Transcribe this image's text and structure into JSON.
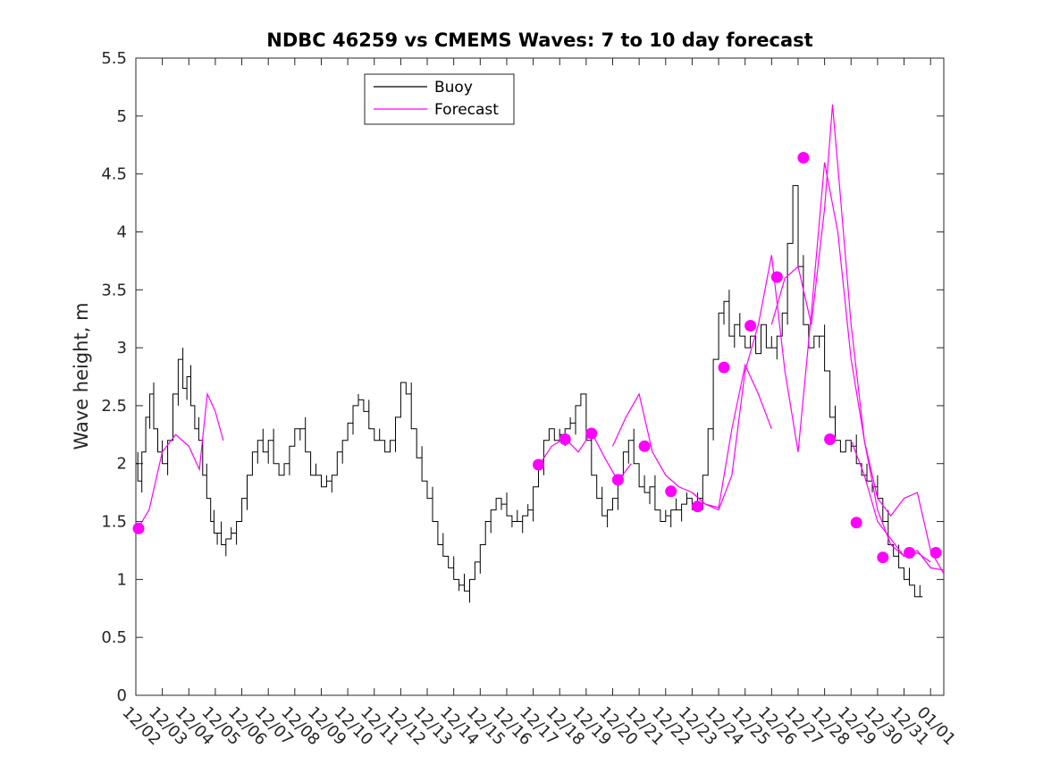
{
  "chart_data": {
    "type": "line",
    "title": "NDBC 46259 vs CMEMS Waves: 7 to 10 day forecast",
    "xlabel": "",
    "ylabel": "Wave height, m",
    "ylim": [
      0,
      5.5
    ],
    "yticks": [
      0,
      0.5,
      1,
      1.5,
      2,
      2.5,
      3,
      3.5,
      4,
      4.5,
      5,
      5.5
    ],
    "ytick_labels": [
      "0",
      "0.5",
      "1",
      "1.5",
      "2",
      "2.5",
      "3",
      "3.5",
      "4",
      "4.5",
      "5",
      "5.5"
    ],
    "xlim_days": [
      0,
      30.5
    ],
    "xtick_labels": [
      "12/02",
      "12/03",
      "12/04",
      "12/05",
      "12/06",
      "12/07",
      "12/08",
      "12/09",
      "12/10",
      "12/11",
      "12/12",
      "12/13",
      "12/14",
      "12/15",
      "12/16",
      "12/17",
      "12/18",
      "12/19",
      "12/20",
      "12/21",
      "12/22",
      "12/23",
      "12/24",
      "12/25",
      "12/26",
      "12/27",
      "12/28",
      "12/29",
      "12/30",
      "12/31",
      "01/01"
    ],
    "x_unit": "days since 12/02",
    "legend_position": "top-left",
    "series": [
      {
        "name": "Buoy",
        "color": "#000000",
        "x": [
          0,
          0.15,
          0.3,
          0.45,
          0.6,
          0.75,
          0.9,
          1.1,
          1.3,
          1.5,
          1.7,
          1.85,
          2.0,
          2.15,
          2.3,
          2.45,
          2.6,
          2.75,
          2.9,
          3.0,
          3.15,
          3.3,
          3.5,
          3.7,
          3.9,
          4.1,
          4.3,
          4.5,
          4.7,
          4.9,
          5.1,
          5.3,
          5.5,
          5.7,
          5.9,
          6.1,
          6.3,
          6.5,
          6.7,
          6.9,
          7.1,
          7.3,
          7.5,
          7.7,
          7.9,
          8.1,
          8.3,
          8.5,
          8.7,
          8.9,
          9.1,
          9.3,
          9.5,
          9.7,
          9.9,
          10.1,
          10.3,
          10.5,
          10.7,
          10.9,
          11.1,
          11.3,
          11.5,
          11.7,
          11.9,
          12.1,
          12.3,
          12.5,
          12.7,
          12.9,
          13.1,
          13.3,
          13.5,
          13.7,
          13.9,
          14.1,
          14.3,
          14.5,
          14.7,
          14.9,
          15.1,
          15.3,
          15.5,
          15.7,
          15.9,
          16.1,
          16.3,
          16.5,
          16.7,
          16.9,
          17.1,
          17.3,
          17.5,
          17.7,
          17.9,
          18.1,
          18.3,
          18.5,
          18.7,
          18.9,
          19.1,
          19.3,
          19.5,
          19.7,
          19.9,
          20.1,
          20.3,
          20.5,
          20.7,
          20.9,
          21.1,
          21.3,
          21.5,
          21.7,
          21.9,
          22.1,
          22.3,
          22.5,
          22.7,
          22.9,
          23.1,
          23.3,
          23.5,
          23.7,
          23.9,
          24.1,
          24.3,
          24.5,
          24.7,
          24.9,
          25.1,
          25.3,
          25.5,
          25.7,
          25.9,
          26.1,
          26.3,
          26.5,
          26.7,
          26.9,
          27.1,
          27.3,
          27.5,
          27.7,
          27.9,
          28.1,
          28.3,
          28.5,
          28.7,
          28.9,
          29.1,
          29.3,
          29.5,
          29.7
        ],
        "values": [
          2.0,
          1.85,
          2.1,
          2.4,
          2.6,
          2.3,
          2.1,
          2.0,
          2.2,
          2.6,
          2.9,
          2.65,
          2.75,
          2.5,
          2.3,
          2.2,
          1.9,
          1.7,
          1.5,
          1.4,
          1.4,
          1.3,
          1.35,
          1.4,
          1.5,
          1.7,
          1.9,
          2.1,
          2.2,
          2.1,
          2.2,
          2.0,
          1.9,
          2.0,
          2.15,
          2.3,
          2.3,
          2.1,
          1.9,
          1.9,
          1.8,
          1.85,
          1.9,
          2.1,
          2.2,
          2.35,
          2.5,
          2.55,
          2.45,
          2.3,
          2.2,
          2.2,
          2.1,
          2.2,
          2.4,
          2.7,
          2.6,
          2.3,
          2.05,
          1.85,
          1.7,
          1.5,
          1.3,
          1.2,
          1.1,
          1.0,
          0.95,
          0.9,
          1.0,
          1.15,
          1.3,
          1.5,
          1.6,
          1.7,
          1.65,
          1.55,
          1.5,
          1.5,
          1.55,
          1.6,
          1.8,
          2.0,
          2.2,
          2.3,
          2.2,
          2.25,
          2.3,
          2.35,
          2.5,
          2.6,
          2.2,
          1.9,
          1.7,
          1.55,
          1.6,
          1.7,
          1.9,
          2.1,
          2.2,
          2.0,
          1.8,
          1.75,
          1.8,
          1.6,
          1.5,
          1.55,
          1.6,
          1.6,
          1.65,
          1.7,
          1.65,
          1.7,
          1.9,
          2.3,
          2.9,
          3.3,
          3.4,
          3.1,
          3.2,
          3.1,
          3.0,
          3.1,
          2.95,
          3.2,
          3.0,
          3.0,
          3.1,
          3.3,
          3.9,
          4.4,
          3.7,
          3.2,
          3.0,
          3.1,
          3.1,
          2.8,
          2.4,
          2.2,
          2.1,
          2.2,
          2.15,
          2.0,
          1.9,
          1.85,
          1.8,
          1.7,
          1.5,
          1.3,
          1.2,
          1.1,
          1.0,
          0.95,
          0.85,
          0.85
        ]
      },
      {
        "name": "Forecast",
        "color": "#ff00ff",
        "segments": [
          {
            "x": [
              0.1,
              0.5,
              1.0,
              1.5,
              2.0,
              2.4,
              2.7,
              3.0,
              3.3
            ],
            "values": [
              1.45,
              1.6,
              2.1,
              2.25,
              2.15,
              1.95,
              2.6,
              2.45,
              2.2
            ]
          },
          {
            "x": [
              15.2,
              15.7,
              16.2,
              16.7,
              17.2,
              17.7,
              18.2,
              18.7
            ],
            "values": [
              1.98,
              2.15,
              2.22,
              2.1,
              2.27,
              2.05,
              1.85,
              2.0
            ]
          },
          {
            "x": [
              18.0,
              18.5,
              19.0,
              19.5,
              20.0,
              20.5,
              21.0,
              21.5,
              22.0,
              22.5,
              23.0,
              23.5,
              24.0
            ],
            "values": [
              2.15,
              2.4,
              2.6,
              2.1,
              1.9,
              1.8,
              1.75,
              1.65,
              1.62,
              2.3,
              2.85,
              2.6,
              2.3
            ]
          },
          {
            "x": [
              21.0,
              21.5,
              22.0,
              22.5,
              23.0,
              23.5,
              24.0,
              24.5,
              25.0,
              25.5,
              26.0,
              26.5,
              27.0,
              27.5,
              28.0,
              28.5,
              29.0,
              29.5,
              30.0
            ],
            "values": [
              1.75,
              1.65,
              1.6,
              1.9,
              2.8,
              3.2,
              3.8,
              2.8,
              2.1,
              3.3,
              4.6,
              4.0,
              2.9,
              2.2,
              1.6,
              1.3,
              1.2,
              1.23,
              1.15
            ]
          },
          {
            "x": [
              24.0,
              24.5,
              25.0,
              25.5,
              26.0,
              26.3,
              26.6,
              27.0,
              27.5,
              28.0,
              28.5,
              29.0,
              29.5,
              30.0,
              30.5
            ],
            "values": [
              3.2,
              3.6,
              3.7,
              3.2,
              4.2,
              5.1,
              4.3,
              3.2,
              2.2,
              1.7,
              1.55,
              1.7,
              1.75,
              1.25,
              1.05
            ]
          },
          {
            "x": [
              27.0,
              27.5,
              28.0,
              28.5,
              29.0,
              29.5,
              30.0,
              30.5
            ],
            "values": [
              2.2,
              1.9,
              1.5,
              1.35,
              1.2,
              1.25,
              1.1,
              1.08
            ]
          }
        ],
        "markers_x": [
          0.1,
          15.2,
          16.2,
          17.2,
          18.2,
          19.2,
          20.2,
          21.2,
          22.2,
          23.2,
          24.2,
          25.2,
          26.2,
          27.2,
          28.2,
          29.2,
          30.2
        ],
        "markers_values": [
          1.44,
          1.99,
          2.21,
          2.26,
          1.86,
          2.15,
          1.76,
          1.63,
          2.83,
          3.19,
          3.61,
          4.64,
          2.21,
          1.49,
          1.19,
          1.23,
          1.23
        ]
      }
    ]
  }
}
